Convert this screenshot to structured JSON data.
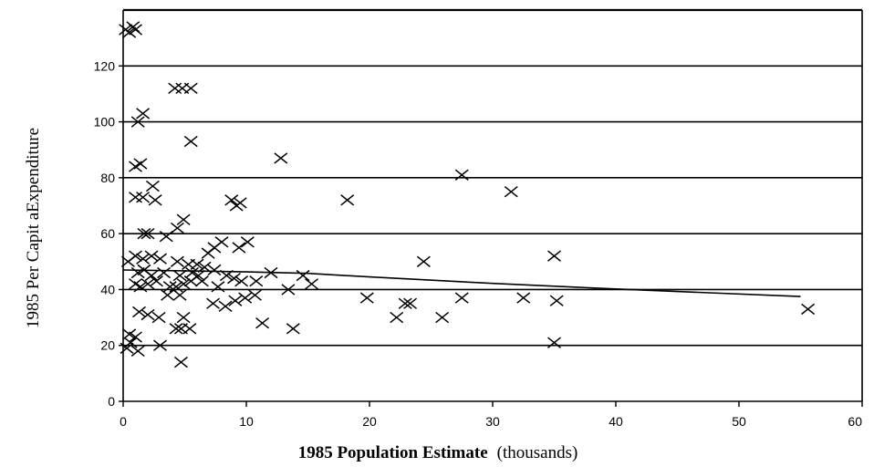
{
  "chart_data": {
    "type": "scatter",
    "title": "",
    "xlabel_bold": "1985 Population Estimate",
    "xlabel_unit": "(thousands)",
    "ylabel": "1985 Per Capit aExpenditure",
    "xlim": [
      0,
      60
    ],
    "ylim": [
      0,
      140
    ],
    "x_ticks": [
      "0",
      "10",
      "20",
      "30",
      "40",
      "50",
      "60"
    ],
    "y_ticks": [
      "0",
      "20",
      "40",
      "60",
      "80",
      "100",
      "120"
    ],
    "grid": "horizontal",
    "marker": "x",
    "points": [
      [
        0.2,
        133
      ],
      [
        0.5,
        132
      ],
      [
        0.8,
        134
      ],
      [
        1.0,
        133
      ],
      [
        4.2,
        112
      ],
      [
        4.8,
        112
      ],
      [
        5.5,
        112
      ],
      [
        1.2,
        100
      ],
      [
        1.6,
        103
      ],
      [
        5.5,
        93
      ],
      [
        1.0,
        84
      ],
      [
        1.4,
        85
      ],
      [
        2.4,
        77
      ],
      [
        1.0,
        73
      ],
      [
        1.6,
        73
      ],
      [
        2.6,
        72
      ],
      [
        8.8,
        72
      ],
      [
        9.5,
        71
      ],
      [
        9.2,
        70
      ],
      [
        12.8,
        87
      ],
      [
        18.2,
        72
      ],
      [
        27.5,
        81
      ],
      [
        31.5,
        75
      ],
      [
        1.7,
        60
      ],
      [
        2.0,
        60
      ],
      [
        4.4,
        62
      ],
      [
        4.9,
        65
      ],
      [
        3.5,
        59
      ],
      [
        8.0,
        57
      ],
      [
        10.1,
        57
      ],
      [
        7.4,
        55
      ],
      [
        9.4,
        55
      ],
      [
        6.9,
        53
      ],
      [
        0.4,
        50
      ],
      [
        1.0,
        52
      ],
      [
        1.6,
        51
      ],
      [
        2.3,
        52
      ],
      [
        3.0,
        51
      ],
      [
        4.4,
        50
      ],
      [
        5.3,
        49
      ],
      [
        6.0,
        49
      ],
      [
        6.6,
        48
      ],
      [
        1.2,
        46
      ],
      [
        1.7,
        47
      ],
      [
        2.3,
        45
      ],
      [
        3.3,
        46
      ],
      [
        4.6,
        45
      ],
      [
        5.6,
        46
      ],
      [
        6.1,
        45
      ],
      [
        7.4,
        47
      ],
      [
        8.4,
        45
      ],
      [
        1.0,
        42
      ],
      [
        1.4,
        41
      ],
      [
        2.0,
        42
      ],
      [
        2.7,
        43
      ],
      [
        3.8,
        41
      ],
      [
        4.3,
        41
      ],
      [
        4.9,
        42
      ],
      [
        5.5,
        43
      ],
      [
        6.4,
        43
      ],
      [
        7.7,
        41
      ],
      [
        9.0,
        44
      ],
      [
        9.6,
        43
      ],
      [
        10.8,
        43
      ],
      [
        12.0,
        46
      ],
      [
        14.6,
        45
      ],
      [
        15.3,
        42
      ],
      [
        24.4,
        50
      ],
      [
        35.0,
        52
      ],
      [
        3.6,
        38
      ],
      [
        4.6,
        38
      ],
      [
        7.3,
        35
      ],
      [
        8.3,
        34
      ],
      [
        9.1,
        36
      ],
      [
        9.9,
        37
      ],
      [
        10.7,
        38
      ],
      [
        13.4,
        40
      ],
      [
        19.8,
        37
      ],
      [
        22.9,
        35
      ],
      [
        23.3,
        35
      ],
      [
        27.5,
        37
      ],
      [
        32.5,
        37
      ],
      [
        35.2,
        36
      ],
      [
        1.3,
        32
      ],
      [
        2.0,
        31
      ],
      [
        2.9,
        30
      ],
      [
        4.9,
        30
      ],
      [
        11.3,
        28
      ],
      [
        13.8,
        26
      ],
      [
        22.2,
        30
      ],
      [
        25.9,
        30
      ],
      [
        4.3,
        26
      ],
      [
        4.7,
        26
      ],
      [
        5.4,
        26
      ],
      [
        0.5,
        24
      ],
      [
        1.0,
        23
      ],
      [
        0.6,
        21
      ],
      [
        0.3,
        19
      ],
      [
        1.2,
        18
      ],
      [
        3.0,
        20
      ],
      [
        35.0,
        21
      ],
      [
        4.7,
        14
      ],
      [
        55.6,
        33
      ]
    ],
    "trend_line": [
      [
        0,
        47
      ],
      [
        5,
        46.7
      ],
      [
        10,
        46.3
      ],
      [
        15,
        45.8
      ],
      [
        20,
        44.5
      ],
      [
        30,
        42.2
      ],
      [
        40,
        40.2
      ],
      [
        55,
        37.5
      ]
    ]
  }
}
